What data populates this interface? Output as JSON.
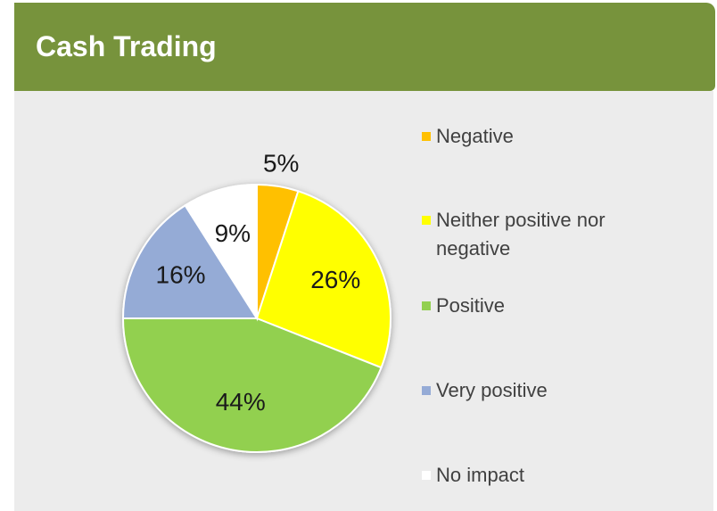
{
  "chart_data": {
    "type": "pie",
    "title": "Cash Trading",
    "categories": [
      "Negative",
      "Neither positive nor negative",
      "Positive",
      "Very positive",
      "No impact"
    ],
    "values": [
      5,
      26,
      44,
      16,
      9
    ],
    "value_labels": [
      "5%",
      "26%",
      "44%",
      "16%",
      "9%"
    ],
    "colors": [
      "#ffc000",
      "#ffff00",
      "#92d050",
      "#95abd6",
      "#ffffff"
    ]
  }
}
